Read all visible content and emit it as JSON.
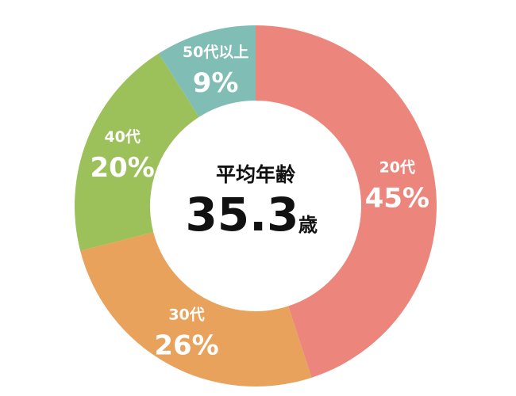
{
  "chart_data": {
    "type": "donut",
    "categories": [
      "20代",
      "30代",
      "40代",
      "50代以上"
    ],
    "values": [
      45,
      26,
      20,
      9
    ],
    "value_labels": [
      "45%",
      "26%",
      "20%",
      "9%"
    ],
    "colors": [
      "#ec867c",
      "#e8a25c",
      "#9cc05a",
      "#7fbdb5"
    ],
    "center_label": "平均年齢",
    "center_value": 35.3,
    "center_unit": "歳"
  }
}
